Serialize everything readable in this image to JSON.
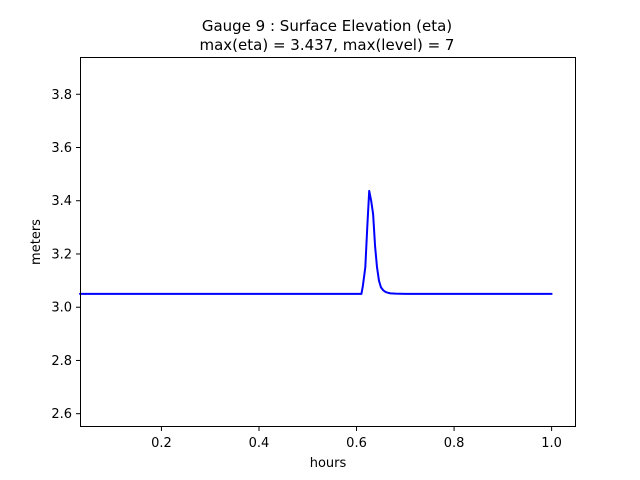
{
  "chart_data": {
    "type": "line",
    "title_line1": "Gauge 9 : Surface Elevation (eta)",
    "title_line2": "max(eta) =   3.437,    max(level) = 7",
    "xlabel": "hours",
    "ylabel": "meters",
    "xlim": [
      0.033,
      1.05
    ],
    "ylim": [
      2.55,
      3.94
    ],
    "x_ticks": [
      {
        "value": 0.2,
        "label": "0.2"
      },
      {
        "value": 0.4,
        "label": "0.4"
      },
      {
        "value": 0.6,
        "label": "0.6"
      },
      {
        "value": 0.8,
        "label": "0.8"
      },
      {
        "value": 1.0,
        "label": "1.0"
      }
    ],
    "y_ticks": [
      {
        "value": 2.6,
        "label": "2.6"
      },
      {
        "value": 2.8,
        "label": "2.8"
      },
      {
        "value": 3.0,
        "label": "3.0"
      },
      {
        "value": 3.2,
        "label": "3.2"
      },
      {
        "value": 3.4,
        "label": "3.4"
      },
      {
        "value": 3.6,
        "label": "3.6"
      },
      {
        "value": 3.8,
        "label": "3.8"
      }
    ],
    "grid": false,
    "series": [
      {
        "color": "#0000ff",
        "x": [
          0.033,
          0.1,
          0.2,
          0.3,
          0.4,
          0.5,
          0.55,
          0.6,
          0.61,
          0.613,
          0.618,
          0.622,
          0.626,
          0.63,
          0.634,
          0.638,
          0.642,
          0.646,
          0.65,
          0.655,
          0.66,
          0.665,
          0.67,
          0.68,
          0.7,
          0.75,
          0.8,
          0.9,
          1.0
        ],
        "y": [
          3.05,
          3.05,
          3.05,
          3.05,
          3.05,
          3.05,
          3.05,
          3.05,
          3.05,
          3.08,
          3.15,
          3.3,
          3.437,
          3.4,
          3.35,
          3.23,
          3.15,
          3.1,
          3.075,
          3.063,
          3.057,
          3.054,
          3.052,
          3.051,
          3.05,
          3.05,
          3.05,
          3.05,
          3.05
        ]
      }
    ]
  }
}
